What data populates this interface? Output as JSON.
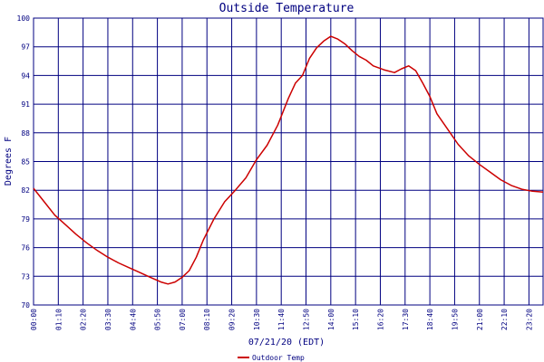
{
  "chart_data": {
    "type": "line",
    "title": "Outside Temperature",
    "xlabel": "07/21/20 (EDT)",
    "ylabel": "Degrees F",
    "ylim": [
      70,
      100
    ],
    "yticks": [
      "70",
      "73",
      "76",
      "79",
      "82",
      "85",
      "88",
      "91",
      "94",
      "97",
      "100"
    ],
    "xticks": [
      "00:00",
      "01:10",
      "02:20",
      "03:30",
      "04:40",
      "05:50",
      "07:00",
      "08:10",
      "09:20",
      "10:30",
      "11:40",
      "12:50",
      "14:00",
      "15:10",
      "16:20",
      "17:30",
      "18:40",
      "19:50",
      "21:00",
      "22:10",
      "23:20"
    ],
    "xlim_minutes": [
      0,
      1440
    ],
    "grid": true,
    "legend_position": "bottom-left",
    "series": [
      {
        "name": "Outdoor Temp",
        "color": "#cc0000",
        "x_minutes": [
          0,
          30,
          60,
          90,
          120,
          150,
          180,
          210,
          240,
          270,
          300,
          330,
          360,
          380,
          400,
          420,
          440,
          460,
          480,
          510,
          540,
          570,
          600,
          630,
          660,
          690,
          720,
          740,
          760,
          780,
          800,
          820,
          840,
          860,
          880,
          900,
          920,
          940,
          960,
          990,
          1020,
          1040,
          1060,
          1080,
          1100,
          1120,
          1140,
          1170,
          1200,
          1230,
          1260,
          1290,
          1320,
          1350,
          1380,
          1410,
          1440
        ],
        "y": [
          82.2,
          80.8,
          79.4,
          78.4,
          77.4,
          76.5,
          75.7,
          75.0,
          74.4,
          73.9,
          73.4,
          72.9,
          72.4,
          72.2,
          72.4,
          72.9,
          73.6,
          75.0,
          76.8,
          79.0,
          80.8,
          82.0,
          83.3,
          85.2,
          86.7,
          88.8,
          91.6,
          93.2,
          94.0,
          95.8,
          96.9,
          97.6,
          98.1,
          97.8,
          97.3,
          96.6,
          96.0,
          95.6,
          95.0,
          94.6,
          94.3,
          94.7,
          95.0,
          94.5,
          93.2,
          91.8,
          90.0,
          88.4,
          86.8,
          85.6,
          84.7,
          83.9,
          83.1,
          82.5,
          82.1,
          81.9,
          81.8
        ]
      }
    ]
  }
}
